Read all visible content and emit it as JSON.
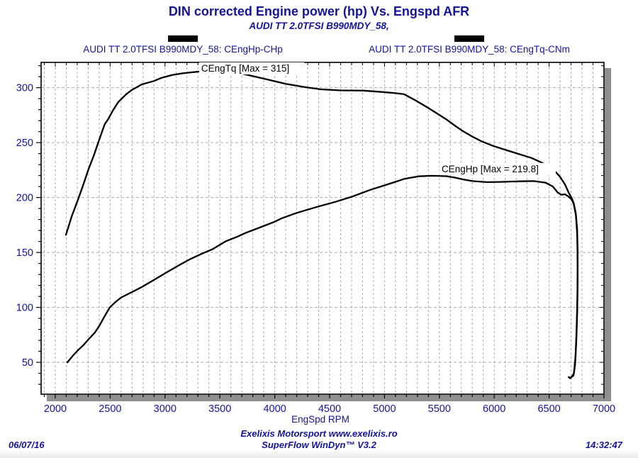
{
  "header": {
    "title": "DIN corrected Engine power (hp) Vs. Engspd AFR",
    "subtitle": "AUDI TT 2.0TFSI B990MDY_58,"
  },
  "legend": {
    "items": [
      {
        "label": "AUDI TT 2.0TFSI B990MDY_58: CEngHp-CHp",
        "swatch_color": "#000000"
      },
      {
        "label": "AUDI TT 2.0TFSI B990MDY_58: CEngTq-CNm",
        "swatch_color": "#000000"
      }
    ]
  },
  "chart_data": {
    "type": "line",
    "title": "DIN corrected Engine power (hp) Vs. Engspd AFR",
    "xlabel": "EngSpd RPM",
    "ylabel": "",
    "x_range": [
      1871,
      7000
    ],
    "y_range": [
      21,
      323
    ],
    "x_ticks": [
      2000,
      2500,
      3000,
      3500,
      4000,
      4500,
      5000,
      5500,
      6000,
      6500,
      7000
    ],
    "y_ticks": [
      50,
      100,
      150,
      200,
      250,
      300
    ],
    "x_grid_step": 100,
    "y_minor_step": 10,
    "grid": true,
    "legend_position": "top",
    "line_color": "#000000",
    "grid_color": "#ababab",
    "shadow_color": "#8f8f8f",
    "axis_text_color": "#14149b",
    "series": [
      {
        "name": "CEngTq-CNm",
        "max": 315,
        "points": [
          [
            2097,
            166
          ],
          [
            2150,
            183
          ],
          [
            2207,
            198
          ],
          [
            2260,
            213
          ],
          [
            2304,
            226
          ],
          [
            2350,
            238
          ],
          [
            2388,
            249
          ],
          [
            2430,
            261
          ],
          [
            2452,
            267
          ],
          [
            2480,
            271
          ],
          [
            2530,
            280
          ],
          [
            2575,
            287
          ],
          [
            2646,
            294
          ],
          [
            2700,
            298
          ],
          [
            2788,
            303
          ],
          [
            2898,
            306
          ],
          [
            2969,
            309
          ],
          [
            3066,
            311.5
          ],
          [
            3156,
            313
          ],
          [
            3250,
            314
          ],
          [
            3350,
            315
          ],
          [
            3480,
            315
          ],
          [
            3560,
            314.5
          ],
          [
            3673,
            313.5
          ],
          [
            3800,
            310.5
          ],
          [
            3951,
            307
          ],
          [
            4100,
            303.5
          ],
          [
            4274,
            300.5
          ],
          [
            4422,
            298.5
          ],
          [
            4597,
            297.5
          ],
          [
            4810,
            297.3
          ],
          [
            4984,
            296
          ],
          [
            5100,
            295
          ],
          [
            5178,
            294
          ],
          [
            5290,
            288
          ],
          [
            5391,
            282
          ],
          [
            5480,
            276.5
          ],
          [
            5565,
            271
          ],
          [
            5640,
            265.5
          ],
          [
            5714,
            260.5
          ],
          [
            5800,
            255.5
          ],
          [
            5888,
            251
          ],
          [
            5990,
            247
          ],
          [
            6082,
            244
          ],
          [
            6211,
            240
          ],
          [
            6340,
            236
          ],
          [
            6450,
            231
          ],
          [
            6534,
            226
          ],
          [
            6599,
            219
          ],
          [
            6644,
            212
          ],
          [
            6676,
            205
          ],
          [
            6708,
            199
          ],
          [
            6724,
            195
          ],
          [
            6742,
            186
          ],
          [
            6755,
            172
          ],
          [
            6760,
            150
          ],
          [
            6760,
            120
          ],
          [
            6756,
            95
          ],
          [
            6748,
            70
          ],
          [
            6737,
            48
          ],
          [
            6722,
            38
          ],
          [
            6690,
            35.5
          ],
          [
            6678,
            36.5
          ]
        ]
      },
      {
        "name": "CEngHp-CHp",
        "max": 219.8,
        "points": [
          [
            2110,
            50
          ],
          [
            2160,
            56
          ],
          [
            2207,
            61
          ],
          [
            2260,
            66
          ],
          [
            2304,
            71
          ],
          [
            2360,
            77
          ],
          [
            2400,
            83
          ],
          [
            2450,
            92
          ],
          [
            2497,
            100
          ],
          [
            2550,
            105
          ],
          [
            2600,
            109
          ],
          [
            2700,
            114
          ],
          [
            2788,
            118.5
          ],
          [
            2900,
            125
          ],
          [
            3000,
            131
          ],
          [
            3120,
            138
          ],
          [
            3230,
            144
          ],
          [
            3340,
            149
          ],
          [
            3434,
            153
          ],
          [
            3550,
            160
          ],
          [
            3650,
            164
          ],
          [
            3740,
            168
          ],
          [
            3870,
            173
          ],
          [
            4000,
            178
          ],
          [
            4060,
            181
          ],
          [
            4200,
            186
          ],
          [
            4385,
            191.5
          ],
          [
            4550,
            196
          ],
          [
            4710,
            201
          ],
          [
            4870,
            207
          ],
          [
            5030,
            212
          ],
          [
            5180,
            217
          ],
          [
            5310,
            219.3
          ],
          [
            5430,
            219.8
          ],
          [
            5565,
            219.4
          ],
          [
            5650,
            218
          ],
          [
            5714,
            216.5
          ],
          [
            5800,
            215
          ],
          [
            5933,
            214
          ],
          [
            6050,
            214.2
          ],
          [
            6147,
            214.5
          ],
          [
            6250,
            214.8
          ],
          [
            6360,
            215
          ],
          [
            6469,
            213.5
          ],
          [
            6534,
            210
          ],
          [
            6579,
            204.5
          ],
          [
            6612,
            202.5
          ],
          [
            6644,
            203
          ],
          [
            6676,
            201
          ],
          [
            6708,
            198
          ],
          [
            6724,
            194
          ],
          [
            6744,
            184
          ],
          [
            6757,
            165
          ],
          [
            6760,
            135
          ],
          [
            6757,
            105
          ],
          [
            6750,
            78
          ],
          [
            6740,
            55
          ],
          [
            6726,
            40
          ],
          [
            6700,
            36
          ],
          [
            6680,
            36.5
          ]
        ]
      }
    ],
    "annotations": [
      {
        "text": "CEngTq [Max = 315]",
        "rpm": 3311,
        "value": 323
      },
      {
        "text": "CEngHp [Max = 219.8]",
        "rpm": 5501,
        "value": 231.5
      }
    ]
  },
  "footer": {
    "credit": "Exelixis Motorsport www.exelixis.ro",
    "software": "SuperFlow WinDyn™ V3.2",
    "date": "06/07/16",
    "time": "14:32:47"
  }
}
